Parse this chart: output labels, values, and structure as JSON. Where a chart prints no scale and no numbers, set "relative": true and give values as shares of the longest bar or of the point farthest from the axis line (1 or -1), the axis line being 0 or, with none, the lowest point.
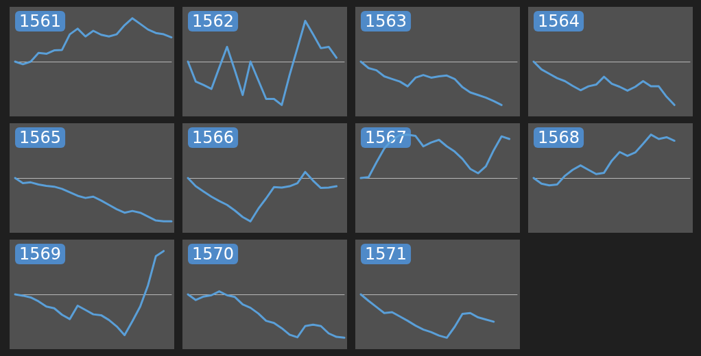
{
  "chart_data": [
    {
      "type": "line",
      "title": "1561",
      "relative": true,
      "tick_labels": false,
      "color": "#5a9fd8",
      "categories": [
        null,
        null,
        null,
        null,
        null,
        null,
        null,
        null,
        null,
        null,
        null,
        null,
        null,
        null,
        null,
        null,
        null,
        null,
        null,
        null,
        null
      ],
      "values": [
        0,
        -0.06,
        0,
        0.2,
        0.18,
        0.26,
        0.27,
        0.63,
        0.76,
        0.58,
        0.71,
        0.62,
        0.58,
        0.63,
        0.84,
        1,
        0.87,
        0.74,
        0.66,
        0.63,
        0.56
      ]
    },
    {
      "type": "line",
      "title": "1562",
      "relative": true,
      "tick_labels": false,
      "color": "#5a9fd8",
      "categories": [
        null,
        null,
        null,
        null,
        null,
        null,
        null,
        null,
        null,
        null,
        null,
        null,
        null,
        null,
        null,
        null,
        null,
        null,
        null,
        null,
        null
      ],
      "values": [
        0,
        -0.46,
        -0.54,
        -0.63,
        -0.14,
        0.34,
        -0.2,
        -0.77,
        0,
        -0.43,
        -0.86,
        -0.86,
        -1,
        -0.31,
        0.31,
        0.94,
        0.63,
        0.31,
        0.34,
        0.09,
        null
      ]
    },
    {
      "type": "line",
      "title": "1563",
      "relative": true,
      "tick_labels": false,
      "color": "#5a9fd8",
      "categories": [
        null,
        null,
        null,
        null,
        null,
        null,
        null,
        null,
        null,
        null,
        null,
        null,
        null,
        null,
        null,
        null,
        null,
        null,
        null,
        null,
        null
      ],
      "values": [
        0,
        -0.15,
        -0.2,
        -0.34,
        -0.4,
        -0.46,
        -0.57,
        -0.37,
        -0.31,
        -0.37,
        -0.34,
        -0.32,
        -0.4,
        -0.59,
        -0.71,
        -0.77,
        -0.83,
        -0.91,
        -1,
        null,
        null
      ]
    },
    {
      "type": "line",
      "title": "1564",
      "relative": true,
      "tick_labels": false,
      "color": "#5a9fd8",
      "categories": [
        null,
        null,
        null,
        null,
        null,
        null,
        null,
        null,
        null,
        null,
        null,
        null,
        null,
        null,
        null,
        null,
        null,
        null,
        null,
        null,
        null
      ],
      "values": [
        0,
        -0.18,
        -0.28,
        -0.38,
        -0.45,
        -0.56,
        -0.66,
        -0.57,
        -0.53,
        -0.35,
        -0.51,
        -0.58,
        -0.67,
        -0.58,
        -0.45,
        -0.57,
        -0.57,
        -0.81,
        -1,
        null,
        null
      ]
    },
    {
      "type": "line",
      "title": "1565",
      "relative": true,
      "tick_labels": false,
      "color": "#5a9fd8",
      "categories": [
        null,
        null,
        null,
        null,
        null,
        null,
        null,
        null,
        null,
        null,
        null,
        null,
        null,
        null,
        null,
        null,
        null,
        null,
        null,
        null,
        null
      ],
      "values": [
        0,
        -0.12,
        -0.1,
        -0.15,
        -0.18,
        -0.2,
        -0.25,
        -0.33,
        -0.41,
        -0.46,
        -0.43,
        -0.52,
        -0.62,
        -0.72,
        -0.8,
        -0.76,
        -0.8,
        -0.89,
        -0.98,
        -1,
        -1
      ]
    },
    {
      "type": "line",
      "title": "1566",
      "relative": true,
      "tick_labels": false,
      "color": "#5a9fd8",
      "categories": [
        null,
        null,
        null,
        null,
        null,
        null,
        null,
        null,
        null,
        null,
        null,
        null,
        null,
        null,
        null,
        null,
        null,
        null,
        null,
        null,
        null
      ],
      "values": [
        0,
        -0.19,
        -0.31,
        -0.43,
        -0.53,
        -0.62,
        -0.75,
        -0.9,
        -1,
        -0.71,
        -0.47,
        -0.21,
        -0.22,
        -0.19,
        -0.12,
        0.14,
        -0.06,
        -0.23,
        -0.22,
        -0.19,
        null
      ]
    },
    {
      "type": "line",
      "title": "1567",
      "relative": true,
      "tick_labels": false,
      "color": "#5a9fd8",
      "categories": [
        null,
        null,
        null,
        null,
        null,
        null,
        null,
        null,
        null,
        null,
        null,
        null,
        null,
        null,
        null,
        null,
        null,
        null,
        null,
        null,
        null
      ],
      "values": [
        0,
        0.02,
        0.36,
        0.68,
        0.88,
        0.99,
        1,
        0.97,
        0.73,
        0.82,
        0.88,
        0.73,
        0.61,
        0.44,
        0.21,
        0.11,
        0.27,
        0.64,
        0.96,
        0.9,
        null
      ]
    },
    {
      "type": "line",
      "title": "1568",
      "relative": true,
      "tick_labels": false,
      "color": "#5a9fd8",
      "categories": [
        null,
        null,
        null,
        null,
        null,
        null,
        null,
        null,
        null,
        null,
        null,
        null,
        null,
        null,
        null,
        null,
        null,
        null,
        null,
        null,
        null
      ],
      "values": [
        0,
        -0.13,
        -0.17,
        -0.15,
        0.05,
        0.19,
        0.29,
        0.19,
        0.09,
        0.12,
        0.4,
        0.6,
        0.51,
        0.59,
        0.79,
        1,
        0.9,
        0.94,
        0.86,
        null,
        null
      ]
    },
    {
      "type": "line",
      "title": "1569",
      "relative": true,
      "tick_labels": false,
      "color": "#5a9fd8",
      "categories": [
        null,
        null,
        null,
        null,
        null,
        null,
        null,
        null,
        null,
        null,
        null,
        null,
        null,
        null,
        null,
        null,
        null,
        null,
        null,
        null,
        null
      ],
      "values": [
        0,
        -0.03,
        -0.07,
        -0.16,
        -0.28,
        -0.32,
        -0.47,
        -0.57,
        -0.26,
        -0.36,
        -0.46,
        -0.48,
        -0.59,
        -0.74,
        -0.94,
        -0.62,
        -0.28,
        0.21,
        0.88,
        1,
        null
      ]
    },
    {
      "type": "line",
      "title": "1570",
      "relative": true,
      "tick_labels": false,
      "color": "#5a9fd8",
      "categories": [
        null,
        null,
        null,
        null,
        null,
        null,
        null,
        null,
        null,
        null,
        null,
        null,
        null,
        null,
        null,
        null,
        null,
        null,
        null,
        null,
        null
      ],
      "values": [
        0,
        -0.13,
        -0.05,
        -0.02,
        0.07,
        -0.02,
        -0.06,
        -0.23,
        -0.31,
        -0.44,
        -0.61,
        -0.66,
        -0.78,
        -0.93,
        -0.99,
        -0.73,
        -0.7,
        -0.73,
        -0.9,
        -0.98,
        -1
      ]
    },
    {
      "type": "line",
      "title": "1571",
      "relative": true,
      "tick_labels": false,
      "color": "#5a9fd8",
      "categories": [
        null,
        null,
        null,
        null,
        null,
        null,
        null,
        null,
        null,
        null,
        null,
        null,
        null,
        null,
        null,
        null,
        null,
        null,
        null,
        null,
        null
      ],
      "values": [
        0,
        -0.15,
        -0.29,
        -0.43,
        -0.41,
        -0.51,
        -0.61,
        -0.72,
        -0.81,
        -0.87,
        -0.95,
        -1,
        -0.75,
        -0.45,
        -0.43,
        -0.53,
        -0.58,
        -0.63,
        null,
        null,
        null
      ]
    }
  ]
}
